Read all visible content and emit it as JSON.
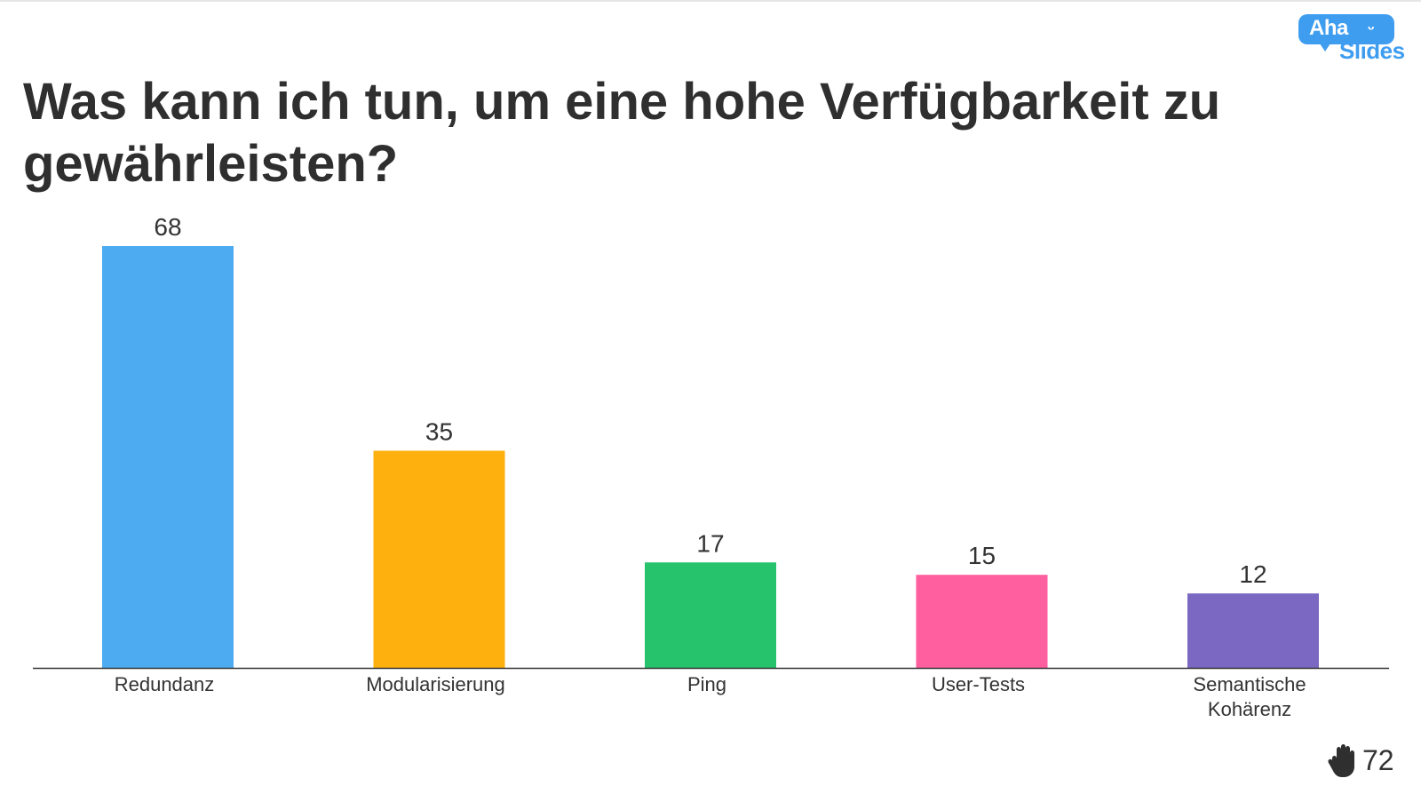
{
  "logo": {
    "line1": "Aha",
    "line2": "Slides",
    "face": "ᵕ"
  },
  "slide": {
    "question": "Was kann ich tun, um eine hohe Verfügbarkeit zu gewährleisten?",
    "participants": "72",
    "participants_icon": "raised-hand-icon"
  },
  "chart_data": {
    "type": "bar",
    "title": "Was kann ich tun, um eine hohe Verfügbarkeit zu gewährleisten?",
    "categories": [
      "Redundanz",
      "Modularisierung",
      "Ping",
      "User-Tests",
      "Semantische Kohärenz"
    ],
    "category_lines": [
      [
        "Redundanz"
      ],
      [
        "Modularisierung"
      ],
      [
        "Ping"
      ],
      [
        "User-Tests"
      ],
      [
        "Semantische",
        "Kohärenz"
      ]
    ],
    "values": [
      68,
      35,
      17,
      15,
      12
    ],
    "colors": [
      "#4dabf1",
      "#fdb00e",
      "#27c26c",
      "#ff5e9f",
      "#7b68c2"
    ],
    "ylim": [
      0,
      68
    ],
    "grid": false,
    "legend": "none",
    "data_labels": true
  }
}
